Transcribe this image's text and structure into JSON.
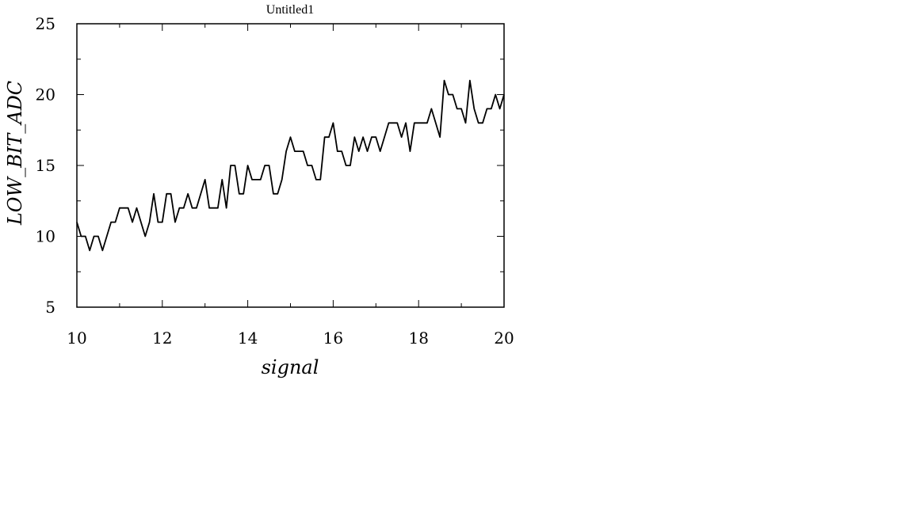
{
  "chart_data": {
    "type": "line",
    "title": "Untitled1",
    "xlabel": "signal",
    "ylabel": "LOW_BIT_ADC",
    "xlim": [
      10,
      20
    ],
    "ylim": [
      5,
      25
    ],
    "x_ticks": [
      "10",
      "12",
      "14",
      "16",
      "18",
      "20"
    ],
    "y_ticks": [
      "5",
      "10",
      "15",
      "20",
      "25"
    ],
    "grid": false,
    "legend": "none",
    "line_color": "#000000",
    "series": [
      {
        "x": [
          10.0,
          10.1,
          10.2,
          10.3,
          10.4,
          10.5,
          10.6,
          10.7,
          10.8,
          10.9,
          11.0,
          11.1,
          11.2,
          11.3,
          11.4,
          11.5,
          11.6,
          11.7,
          11.8,
          11.9,
          12.0,
          12.1,
          12.2,
          12.3,
          12.4,
          12.5,
          12.6,
          12.7,
          12.8,
          12.9,
          13.0,
          13.1,
          13.2,
          13.3,
          13.4,
          13.5,
          13.6,
          13.7,
          13.8,
          13.9,
          14.0,
          14.1,
          14.2,
          14.3,
          14.4,
          14.5,
          14.6,
          14.7,
          14.8,
          14.9,
          15.0,
          15.1,
          15.2,
          15.3,
          15.4,
          15.5,
          15.6,
          15.7,
          15.8,
          15.9,
          16.0,
          16.1,
          16.2,
          16.3,
          16.4,
          16.5,
          16.6,
          16.7,
          16.8,
          16.9,
          17.0,
          17.1,
          17.2,
          17.3,
          17.4,
          17.5,
          17.6,
          17.7,
          17.8,
          17.9,
          18.0,
          18.1,
          18.2,
          18.3,
          18.4,
          18.5,
          18.6,
          18.7,
          18.8,
          18.9,
          19.0,
          19.1,
          19.2,
          19.3,
          19.4,
          19.5,
          19.6,
          19.7,
          19.8,
          19.9,
          20.0
        ],
        "y": [
          11,
          10,
          10,
          9,
          10,
          10,
          9,
          10,
          11,
          11,
          12,
          12,
          12,
          11,
          12,
          11,
          10,
          11,
          13,
          11,
          11,
          13,
          13,
          11,
          12,
          12,
          13,
          12,
          12,
          13,
          14,
          12,
          12,
          12,
          14,
          12,
          15,
          15,
          13,
          13,
          15,
          14,
          14,
          14,
          15,
          15,
          13,
          13,
          14,
          16,
          17,
          16,
          16,
          16,
          15,
          15,
          14,
          14,
          17,
          17,
          18,
          16,
          16,
          15,
          15,
          17,
          16,
          17,
          16,
          17,
          17,
          16,
          17,
          18,
          18,
          18,
          17,
          18,
          16,
          18,
          18,
          18,
          18,
          19,
          18,
          17,
          21,
          20,
          20,
          19,
          19,
          18,
          21,
          19,
          18,
          18,
          19,
          19,
          20,
          19,
          20
        ]
      }
    ]
  }
}
